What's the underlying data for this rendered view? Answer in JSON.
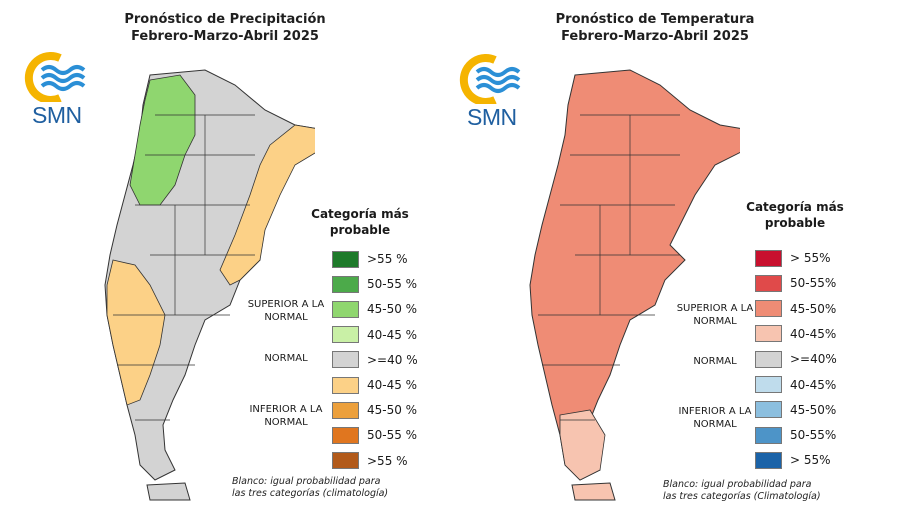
{
  "precipitation": {
    "title_line1": "Pronóstico de Precipitación",
    "title_line2": "Febrero-Marzo-Abril 2025",
    "legend_title_line1": "Categoría más",
    "legend_title_line2": "probable",
    "legend": [
      {
        "label": ">55 %",
        "color": "#1e7a2a"
      },
      {
        "label": "50-55 %",
        "color": "#4caa4a"
      },
      {
        "label": "45-50 %",
        "color": "#8fd66f"
      },
      {
        "label": "40-45 %",
        "color": "#c9f0a6"
      },
      {
        "label": ">=40 %",
        "color": "#d3d3d3"
      },
      {
        "label": "40-45 %",
        "color": "#fcd187"
      },
      {
        "label": "45-50 %",
        "color": "#eca03c"
      },
      {
        "label": "50-55 %",
        "color": "#e0761f"
      },
      {
        "label": ">55 %",
        "color": "#b25a1a"
      }
    ],
    "group_superior": "SUPERIOR A LA NORMAL",
    "group_normal": "NORMAL",
    "group_inferior": "INFERIOR A LA NORMAL",
    "note_line1": "Blanco: igual probabilidad para",
    "note_line2": "las tres categorías (climatología)"
  },
  "temperature": {
    "title_line1": "Pronóstico de Temperatura",
    "title_line2": "Febrero-Marzo-Abril 2025",
    "legend_title_line1": "Categoría más",
    "legend_title_line2": "probable",
    "legend": [
      {
        "label": "> 55%",
        "color": "#c8102e"
      },
      {
        "label": "50-55%",
        "color": "#e04a4a"
      },
      {
        "label": "45-50%",
        "color": "#ef8c75"
      },
      {
        "label": "40-45%",
        "color": "#f7c4b0"
      },
      {
        "label": ">=40%",
        "color": "#d3d3d3"
      },
      {
        "label": "40-45%",
        "color": "#bfdcec"
      },
      {
        "label": "45-50%",
        "color": "#8cbfdf"
      },
      {
        "label": "50-55%",
        "color": "#4d94c8"
      },
      {
        "label": "> 55%",
        "color": "#1b63a8"
      }
    ],
    "group_superior": "SUPERIOR A LA NORMAL",
    "group_normal": "NORMAL",
    "group_inferior": "INFERIOR A LA NORMAL",
    "note_line1": "Blanco: igual probabilidad para",
    "note_line2": "las tres categorías (Climatología)"
  },
  "logo": {
    "text": "SMN",
    "sun_color": "#f5b400",
    "wave_color": "#2b8fd6"
  },
  "map_colors": {
    "precip_above_45_50": "#8fd66f",
    "precip_normal": "#d3d3d3",
    "precip_below_40_45": "#fcd187",
    "temp_above_45_50": "#ef8c75",
    "temp_above_40_45": "#f7c4b0"
  }
}
